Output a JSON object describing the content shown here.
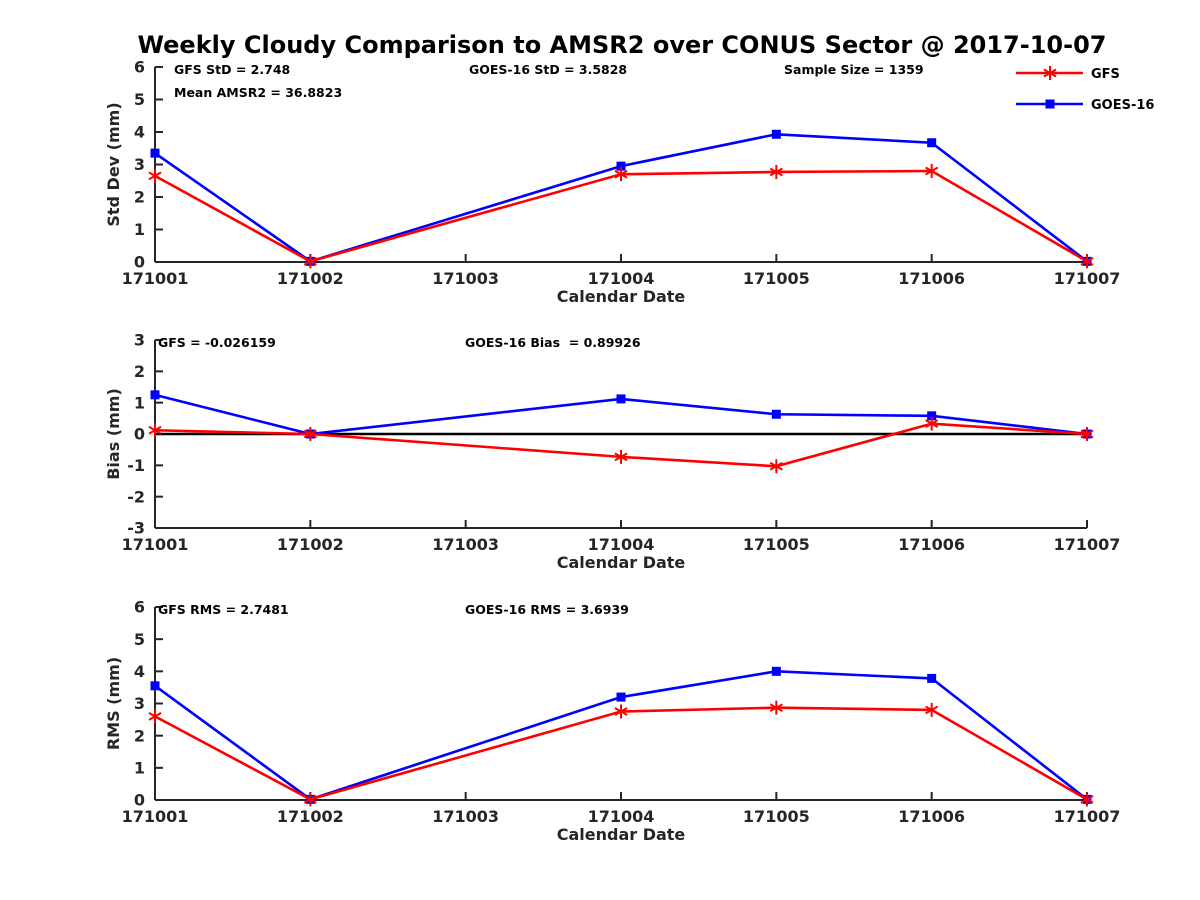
{
  "title": "Weekly Cloudy Comparison to AMSR2 over CONUS Sector @ 2017-10-07",
  "colors": {
    "gfs": "#ff0000",
    "goes16": "#0000ff",
    "axis": "#262626",
    "zero_line": "#000000"
  },
  "legend": [
    {
      "label": "GFS",
      "color": "#ff0000",
      "marker": "asterisk"
    },
    {
      "label": "GOES-16",
      "color": "#0000ff",
      "marker": "square"
    }
  ],
  "chart_data": [
    {
      "id": "stddev",
      "type": "line",
      "ylabel": "Std Dev (mm)",
      "xlabel": "Calendar Date",
      "ylim": [
        0,
        6
      ],
      "ytick_step": 1,
      "x_range": [
        171001,
        171007
      ],
      "x_categories": [
        "171001",
        "171002",
        "171003",
        "171004",
        "171005",
        "171006",
        "171007"
      ],
      "zero_line": false,
      "annotations": [
        "GFS StD = 2.748",
        "Mean AMSR2 = 36.8823",
        "GOES-16 StD = 3.5828",
        "Sample Size = 1359"
      ],
      "series": [
        {
          "name": "GOES-16",
          "color": "#0000ff",
          "marker": "square",
          "x": [
            171001,
            171002,
            171004,
            171005,
            171006,
            171007
          ],
          "y": [
            3.35,
            0.02,
            2.95,
            3.93,
            3.67,
            0.02
          ]
        },
        {
          "name": "GFS",
          "color": "#ff0000",
          "marker": "asterisk",
          "x": [
            171001,
            171002,
            171004,
            171005,
            171006,
            171007
          ],
          "y": [
            2.65,
            0.02,
            2.7,
            2.77,
            2.8,
            0.02
          ]
        }
      ]
    },
    {
      "id": "bias",
      "type": "line",
      "ylabel": "Bias (mm)",
      "xlabel": "Calendar Date",
      "ylim": [
        -3,
        3
      ],
      "ytick_step": 1,
      "x_range": [
        171001,
        171007
      ],
      "x_categories": [
        "171001",
        "171002",
        "171003",
        "171004",
        "171005",
        "171006",
        "171007"
      ],
      "zero_line": true,
      "annotations": [
        "GFS = -0.026159",
        "GOES-16 Bias  = 0.89926"
      ],
      "series": [
        {
          "name": "GOES-16",
          "color": "#0000ff",
          "marker": "square",
          "x": [
            171001,
            171002,
            171004,
            171005,
            171006,
            171007
          ],
          "y": [
            1.25,
            0.0,
            1.12,
            0.63,
            0.58,
            0.0
          ]
        },
        {
          "name": "GFS",
          "color": "#ff0000",
          "marker": "asterisk",
          "x": [
            171001,
            171002,
            171004,
            171005,
            171006,
            171007
          ],
          "y": [
            0.12,
            0.0,
            -0.73,
            -1.03,
            0.33,
            0.0
          ]
        }
      ]
    },
    {
      "id": "rms",
      "type": "line",
      "ylabel": "RMS (mm)",
      "xlabel": "Calendar Date",
      "ylim": [
        0,
        6
      ],
      "ytick_step": 1,
      "x_range": [
        171001,
        171007
      ],
      "x_categories": [
        "171001",
        "171002",
        "171003",
        "171004",
        "171005",
        "171006",
        "171007"
      ],
      "zero_line": false,
      "annotations": [
        "GFS RMS = 2.7481",
        "GOES-16 RMS = 3.6939"
      ],
      "series": [
        {
          "name": "GOES-16",
          "color": "#0000ff",
          "marker": "square",
          "x": [
            171001,
            171002,
            171004,
            171005,
            171006,
            171007
          ],
          "y": [
            3.55,
            0.02,
            3.2,
            4.0,
            3.78,
            0.02
          ]
        },
        {
          "name": "GFS",
          "color": "#ff0000",
          "marker": "asterisk",
          "x": [
            171001,
            171002,
            171004,
            171005,
            171006,
            171007
          ],
          "y": [
            2.6,
            0.02,
            2.75,
            2.87,
            2.8,
            0.02
          ]
        }
      ]
    }
  ]
}
